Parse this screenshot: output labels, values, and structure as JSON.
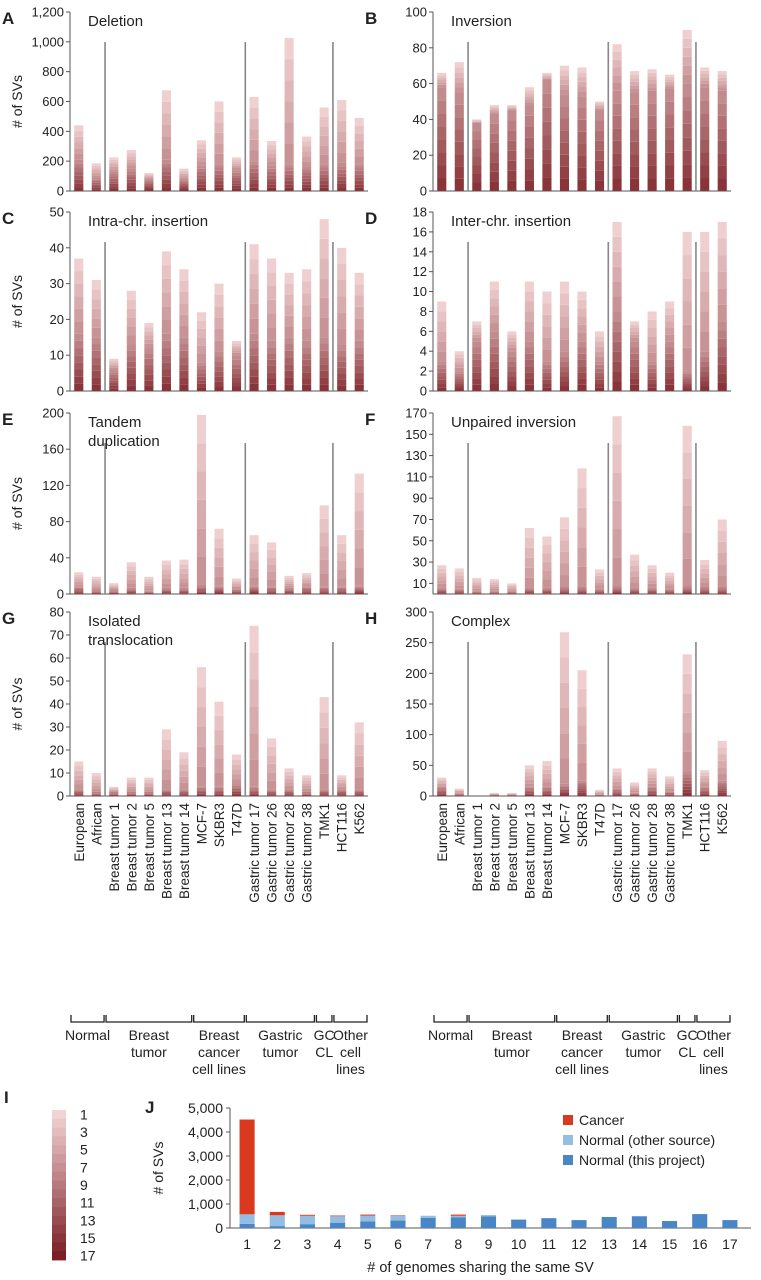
{
  "panels": {
    "A": "A",
    "B": "B",
    "C": "C",
    "D": "D",
    "E": "E",
    "F": "F",
    "G": "G",
    "H": "H",
    "I": "I",
    "J": "J"
  },
  "samples": [
    "European",
    "African",
    "Breast tumor 1",
    "Breast tumor 2",
    "Breast tumor 5",
    "Breast tumor 13",
    "Breast tumor 14",
    "MCF-7",
    "SKBR3",
    "T47D",
    "Gastric tumor 17",
    "Gastric tumor 26",
    "Gastric tumor 28",
    "Gastric tumor 38",
    "TMK1",
    "HCT116",
    "K562"
  ],
  "groups": [
    {
      "lines": [
        "Normal"
      ]
    },
    {
      "lines": [
        "Breast",
        "tumor"
      ]
    },
    {
      "lines": [
        "Breast",
        "cancer",
        "cell lines"
      ]
    },
    {
      "lines": [
        "Gastric",
        "tumor"
      ]
    },
    {
      "lines": [
        "GC",
        "CL"
      ]
    },
    {
      "lines": [
        "Other",
        "cell",
        "lines"
      ]
    }
  ],
  "colors": {
    "cancer": "#d9391e",
    "normal_other": "#93bde3",
    "normal_this": "#4a86c5",
    "shade_light": "#f2d3d3",
    "shade_dark": "#7a1f24",
    "separator": "#888888",
    "axis": "#555555"
  },
  "sharing_scale": {
    "range": [
      1,
      17
    ],
    "labels": [
      "1",
      "3",
      "5",
      "7",
      "9",
      "11",
      "13",
      "15",
      "17"
    ]
  },
  "chart_data": [
    {
      "type": "bar",
      "panel": "A",
      "title": "Deletion",
      "ylabel": "# of SVs",
      "ylim": [
        0,
        1200
      ],
      "yticks": [
        "0",
        "200",
        "400",
        "600",
        "800",
        "1,000",
        "1,200"
      ],
      "tick_values": [
        0,
        200,
        400,
        600,
        800,
        1000,
        1200
      ],
      "values": [
        440,
        185,
        225,
        275,
        120,
        675,
        150,
        340,
        600,
        225,
        630,
        335,
        1025,
        365,
        560,
        610,
        490
      ],
      "core": [
        210,
        90,
        130,
        150,
        80,
        210,
        80,
        170,
        180,
        140,
        200,
        170,
        180,
        165,
        180,
        190,
        180
      ]
    },
    {
      "type": "bar",
      "panel": "B",
      "title": "Inversion",
      "ylabel": "",
      "ylim": [
        0,
        100
      ],
      "yticks": [
        "0",
        "20",
        "40",
        "60",
        "80",
        "100"
      ],
      "tick_values": [
        0,
        20,
        40,
        60,
        80,
        100
      ],
      "values": [
        66,
        72,
        40,
        48,
        48,
        58,
        66,
        70,
        69,
        50,
        82,
        67,
        68,
        65,
        90,
        69,
        67
      ],
      "core": [
        58,
        55,
        38,
        43,
        45,
        48,
        62,
        54,
        53,
        45,
        56,
        55,
        56,
        57,
        60,
        58,
        56
      ]
    },
    {
      "type": "bar",
      "panel": "C",
      "title": "Intra-chr. insertion",
      "ylabel": "# of SVs",
      "ylim": [
        0,
        50
      ],
      "yticks": [
        "0",
        "10",
        "20",
        "30",
        "40",
        "50"
      ],
      "tick_values": [
        0,
        10,
        20,
        30,
        40,
        50
      ],
      "values": [
        37,
        31,
        9,
        28,
        19,
        39,
        34,
        22,
        30,
        14,
        41,
        37,
        33,
        34,
        48,
        40,
        33
      ],
      "core": [
        16,
        15,
        6,
        13,
        12,
        16,
        15,
        8,
        11,
        10,
        16,
        14,
        15,
        14,
        15,
        13,
        14
      ]
    },
    {
      "type": "bar",
      "panel": "D",
      "title": "Inter-chr. insertion",
      "ylabel": "",
      "ylim": [
        0,
        18
      ],
      "yticks": [
        "0",
        "2",
        "4",
        "6",
        "8",
        "10",
        "12",
        "14",
        "16",
        "18"
      ],
      "tick_values": [
        0,
        2,
        4,
        6,
        8,
        10,
        12,
        14,
        16,
        18
      ],
      "values": [
        9,
        4,
        7,
        11,
        6,
        11,
        10,
        11,
        10,
        6,
        17,
        7,
        8,
        9,
        16,
        16,
        17
      ],
      "core": [
        3,
        2,
        5,
        6,
        4,
        5,
        3,
        4,
        5,
        3,
        8,
        5,
        3,
        5,
        2,
        4,
        7
      ]
    },
    {
      "type": "bar",
      "panel": "E",
      "title": "Tandem\nduplication",
      "ylabel": "# of SVs",
      "ylim": [
        0,
        200
      ],
      "yticks": [
        "0",
        "40",
        "80",
        "120",
        "160",
        "200"
      ],
      "tick_values": [
        0,
        40,
        80,
        120,
        160,
        200
      ],
      "values": [
        24,
        19,
        12,
        35,
        19,
        37,
        38,
        198,
        72,
        17,
        65,
        57,
        20,
        23,
        98,
        65,
        133
      ],
      "core": [
        8,
        5,
        5,
        7,
        4,
        7,
        7,
        10,
        9,
        6,
        9,
        8,
        7,
        8,
        8,
        8,
        9
      ]
    },
    {
      "type": "bar",
      "panel": "F",
      "title": "Unpaired inversion",
      "ylabel": "",
      "ylim": [
        0,
        170
      ],
      "yticks": [
        "10",
        "30",
        "50",
        "70",
        "90",
        "110",
        "130",
        "150",
        "170"
      ],
      "tick_values": [
        10,
        30,
        50,
        70,
        90,
        110,
        130,
        150,
        170
      ],
      "values": [
        27,
        24,
        15,
        14,
        10,
        62,
        54,
        72,
        118,
        23,
        167,
        37,
        27,
        20,
        158,
        32,
        70
      ],
      "core": [
        6,
        5,
        3,
        3,
        3,
        6,
        6,
        7,
        7,
        5,
        8,
        6,
        6,
        5,
        8,
        7,
        7
      ]
    },
    {
      "type": "bar",
      "panel": "G",
      "title": "Isolated\ntranslocation",
      "ylabel": "# of SVs",
      "ylim": [
        0,
        80
      ],
      "yticks": [
        "0",
        "10",
        "20",
        "30",
        "40",
        "50",
        "60",
        "70",
        "80"
      ],
      "tick_values": [
        0,
        10,
        20,
        30,
        40,
        50,
        60,
        70,
        80
      ],
      "values": [
        15,
        10,
        4,
        8,
        8,
        29,
        19,
        56,
        41,
        18,
        74,
        25,
        12,
        9,
        43,
        9,
        32
      ],
      "core": [
        3,
        2,
        2,
        2,
        2,
        3,
        3,
        4,
        4,
        5,
        4,
        3,
        3,
        2,
        3,
        3,
        3
      ]
    },
    {
      "type": "bar",
      "panel": "H",
      "title": "Complex",
      "ylabel": "",
      "ylim": [
        0,
        300
      ],
      "yticks": [
        "0",
        "50",
        "100",
        "150",
        "200",
        "250",
        "300"
      ],
      "tick_values": [
        0,
        50,
        100,
        150,
        200,
        250,
        300
      ],
      "values": [
        30,
        12,
        2,
        5,
        5,
        50,
        57,
        267,
        205,
        10,
        45,
        22,
        45,
        32,
        231,
        42,
        90
      ],
      "core": [
        15,
        5,
        1,
        3,
        3,
        15,
        15,
        20,
        25,
        3,
        12,
        6,
        15,
        8,
        40,
        15,
        25
      ]
    },
    {
      "type": "bar",
      "panel": "J",
      "stacked": true,
      "ylabel": "# of SVs",
      "xlabel": "# of genomes sharing the same SV",
      "ylim": [
        0,
        5000
      ],
      "yticks": [
        "0",
        "1,000",
        "2,000",
        "3,000",
        "4,000",
        "5,000"
      ],
      "tick_values": [
        0,
        1000,
        2000,
        3000,
        4000,
        5000
      ],
      "categories": [
        "1",
        "2",
        "3",
        "4",
        "5",
        "6",
        "7",
        "8",
        "9",
        "10",
        "11",
        "12",
        "13",
        "14",
        "15",
        "16",
        "17"
      ],
      "legend_position": "top-right",
      "series": [
        {
          "name": "Normal (this project)",
          "color": "#4a86c5",
          "values": [
            170,
            80,
            160,
            220,
            280,
            310,
            420,
            450,
            480,
            350,
            410,
            330,
            460,
            490,
            290,
            580,
            330
          ]
        },
        {
          "name": "Normal (other source)",
          "color": "#93bde3",
          "values": [
            400,
            450,
            350,
            270,
            240,
            200,
            90,
            60,
            60,
            0,
            0,
            0,
            0,
            0,
            0,
            0,
            0
          ]
        },
        {
          "name": "Cancer",
          "color": "#d9391e",
          "values": [
            3950,
            140,
            40,
            30,
            40,
            20,
            0,
            50,
            0,
            0,
            0,
            0,
            0,
            0,
            0,
            0,
            0
          ]
        }
      ]
    }
  ]
}
